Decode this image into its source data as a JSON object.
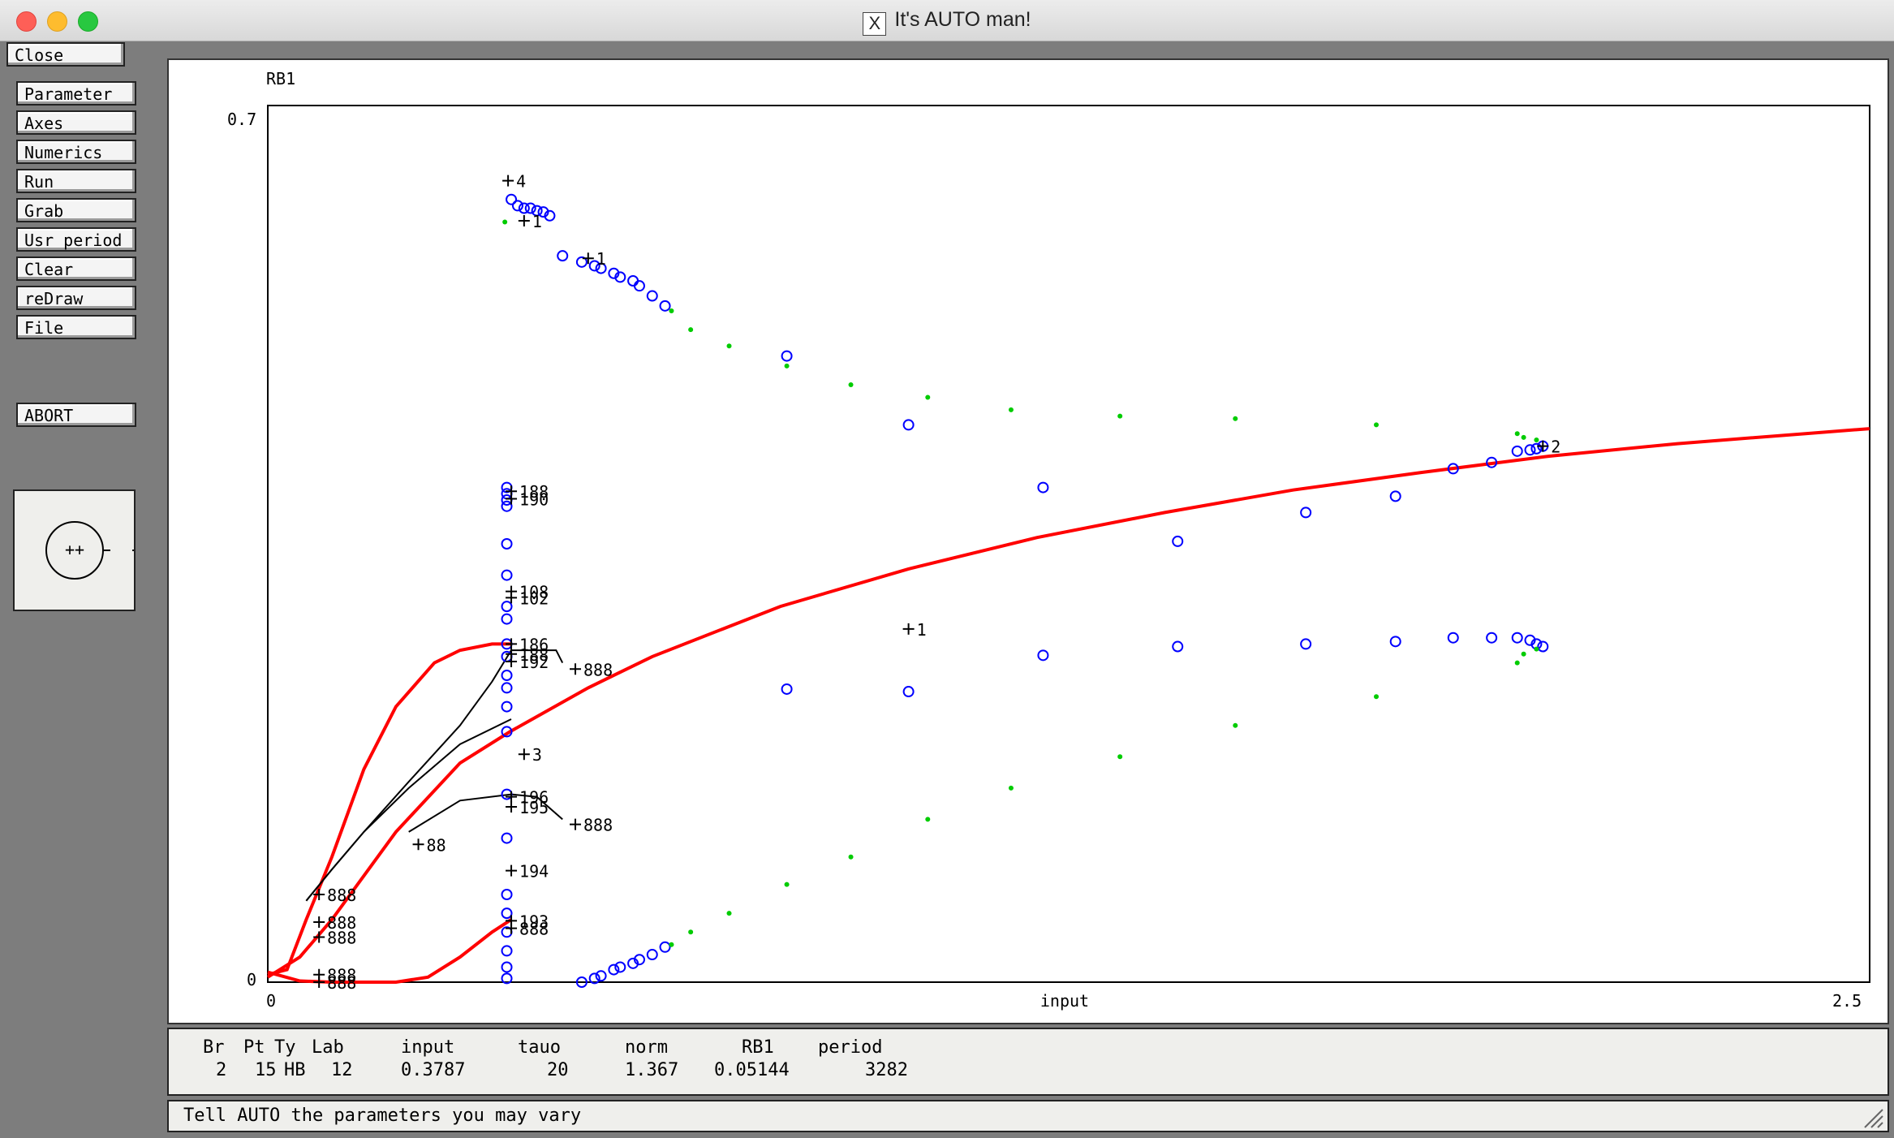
{
  "window": {
    "title": "It's AUTO man!",
    "x_glyph": "X"
  },
  "buttons": {
    "close": "Close",
    "menu": [
      "Parameter",
      "Axes",
      "Numerics",
      "Run",
      "Grab",
      "Usr period",
      "Clear",
      "reDraw",
      "File"
    ],
    "abort": "ABORT"
  },
  "plot": {
    "ylabel": "RB1",
    "xlabel": "input",
    "ymax_label": "0.7",
    "ymin_label": "0",
    "xmin_label": "0",
    "xmax_label": "2.5"
  },
  "chart_data": {
    "type": "scatter",
    "xlabel": "input",
    "ylabel": "RB1",
    "xlim": [
      0,
      2.5
    ],
    "ylim": [
      0,
      0.7
    ],
    "grid": false,
    "colors": {
      "stable_branch": "#ff0000",
      "unstable_branch": "#000000",
      "unstable_periodic": "#0000ff",
      "stable_periodic": "#00cc00"
    },
    "series": [
      {
        "style": "line-red",
        "x": [
          0.0,
          0.05,
          0.1,
          0.2,
          0.3,
          0.378,
          0.5,
          0.6,
          0.8,
          1.0,
          1.2,
          1.4,
          1.6,
          1.8,
          2.0,
          2.2,
          2.4,
          2.5
        ],
        "y": [
          0.004,
          0.02,
          0.05,
          0.12,
          0.175,
          0.2,
          0.235,
          0.26,
          0.3,
          0.33,
          0.355,
          0.375,
          0.393,
          0.407,
          0.42,
          0.43,
          0.438,
          0.442
        ]
      },
      {
        "style": "line-red",
        "x": [
          0.0,
          0.03,
          0.06,
          0.1,
          0.15,
          0.2,
          0.26,
          0.3,
          0.35,
          0.38
        ],
        "y": [
          0.006,
          0.01,
          0.05,
          0.1,
          0.17,
          0.22,
          0.255,
          0.265,
          0.27,
          0.27
        ]
      },
      {
        "style": "line-red",
        "x": [
          0.0,
          0.05,
          0.1,
          0.15,
          0.2,
          0.25,
          0.3,
          0.35,
          0.38
        ],
        "y": [
          0.008,
          0.001,
          0.0,
          0.0,
          0.0,
          0.004,
          0.02,
          0.04,
          0.05
        ]
      },
      {
        "style": "line-black",
        "x": [
          0.06,
          0.1,
          0.15,
          0.22,
          0.3,
          0.38
        ],
        "y": [
          0.065,
          0.09,
          0.12,
          0.155,
          0.19,
          0.21
        ]
      },
      {
        "style": "line-black",
        "x": [
          0.06,
          0.1,
          0.15,
          0.22,
          0.3,
          0.35,
          0.38,
          0.45,
          0.46
        ],
        "y": [
          0.065,
          0.09,
          0.12,
          0.16,
          0.205,
          0.24,
          0.265,
          0.265,
          0.255
        ]
      },
      {
        "style": "line-black",
        "x": [
          0.22,
          0.3,
          0.38,
          0.42,
          0.46
        ],
        "y": [
          0.12,
          0.145,
          0.15,
          0.148,
          0.13
        ]
      },
      {
        "style": "circles-blue",
        "x": [
          0.38,
          0.39,
          0.4,
          0.41,
          0.42,
          0.43,
          0.44,
          0.46,
          0.49,
          0.51,
          0.52,
          0.54,
          0.55,
          0.57,
          0.58,
          0.6,
          0.62,
          0.81,
          1.0,
          1.21,
          1.42,
          1.62,
          1.76,
          1.85,
          1.91,
          1.95,
          1.97,
          1.98,
          1.99
        ],
        "y": [
          0.625,
          0.62,
          0.618,
          0.618,
          0.616,
          0.615,
          0.612,
          0.58,
          0.575,
          0.572,
          0.57,
          0.566,
          0.563,
          0.56,
          0.556,
          0.548,
          0.54,
          0.5,
          0.445,
          0.395,
          0.352,
          0.375,
          0.388,
          0.41,
          0.415,
          0.424,
          0.425,
          0.426,
          0.428
        ]
      },
      {
        "style": "circles-blue",
        "x": [
          0.49,
          0.51,
          0.52,
          0.54,
          0.55,
          0.57,
          0.58,
          0.6,
          0.62,
          0.81,
          1.0,
          1.21,
          1.42,
          1.62,
          1.76,
          1.85,
          1.91,
          1.95,
          1.97,
          1.98,
          1.99
        ],
        "y": [
          0.0,
          0.003,
          0.005,
          0.01,
          0.012,
          0.015,
          0.018,
          0.022,
          0.028,
          0.234,
          0.232,
          0.261,
          0.268,
          0.27,
          0.272,
          0.275,
          0.275,
          0.275,
          0.273,
          0.27,
          0.268
        ]
      },
      {
        "style": "circles-blue",
        "x": [
          0.373,
          0.373,
          0.373,
          0.373,
          0.373,
          0.373,
          0.373,
          0.373,
          0.373,
          0.373,
          0.373,
          0.373,
          0.373,
          0.373,
          0.373,
          0.373,
          0.373,
          0.373,
          0.373,
          0.373,
          0.373,
          0.373
        ],
        "y": [
          0.395,
          0.39,
          0.385,
          0.38,
          0.35,
          0.325,
          0.3,
          0.29,
          0.27,
          0.26,
          0.245,
          0.235,
          0.22,
          0.2,
          0.15,
          0.115,
          0.07,
          0.055,
          0.04,
          0.025,
          0.012,
          0.003
        ]
      },
      {
        "style": "dots-green",
        "x": [
          0.37,
          0.63,
          0.66,
          0.72,
          0.81,
          0.91,
          1.03,
          1.16,
          1.33,
          1.51,
          1.73,
          1.95,
          1.96,
          1.98
        ],
        "y": [
          0.607,
          0.536,
          0.521,
          0.508,
          0.492,
          0.477,
          0.467,
          0.457,
          0.452,
          0.45,
          0.445,
          0.438,
          0.435,
          0.433
        ]
      },
      {
        "style": "dots-green",
        "x": [
          0.63,
          0.66,
          0.72,
          0.81,
          0.91,
          1.03,
          1.16,
          1.33,
          1.51,
          1.73,
          1.95,
          1.96,
          1.98
        ],
        "y": [
          0.03,
          0.04,
          0.055,
          0.078,
          0.1,
          0.13,
          0.155,
          0.18,
          0.205,
          0.228,
          0.255,
          0.262,
          0.266
        ]
      }
    ],
    "annotations": [
      {
        "x": 0.375,
        "y": 0.64,
        "text": "4"
      },
      {
        "x": 0.4,
        "y": 0.608,
        "text": "1"
      },
      {
        "x": 0.5,
        "y": 0.578,
        "text": "1"
      },
      {
        "x": 1.99,
        "y": 0.428,
        "text": "2"
      },
      {
        "x": 1.0,
        "y": 0.282,
        "text": "1"
      },
      {
        "x": 0.4,
        "y": 0.182,
        "text": "3"
      },
      {
        "x": 0.38,
        "y": 0.392,
        "text": "188"
      },
      {
        "x": 0.38,
        "y": 0.386,
        "text": "190"
      },
      {
        "x": 0.38,
        "y": 0.312,
        "text": "108"
      },
      {
        "x": 0.38,
        "y": 0.307,
        "text": "102"
      },
      {
        "x": 0.38,
        "y": 0.27,
        "text": "186"
      },
      {
        "x": 0.38,
        "y": 0.262,
        "text": "188"
      },
      {
        "x": 0.38,
        "y": 0.256,
        "text": "192"
      },
      {
        "x": 0.48,
        "y": 0.25,
        "text": "888"
      },
      {
        "x": 0.38,
        "y": 0.148,
        "text": "196"
      },
      {
        "x": 0.38,
        "y": 0.14,
        "text": "195"
      },
      {
        "x": 0.48,
        "y": 0.126,
        "text": "888"
      },
      {
        "x": 0.235,
        "y": 0.11,
        "text": "88"
      },
      {
        "x": 0.38,
        "y": 0.089,
        "text": "194"
      },
      {
        "x": 0.38,
        "y": 0.049,
        "text": "193"
      },
      {
        "x": 0.38,
        "y": 0.043,
        "text": "888"
      },
      {
        "x": 0.08,
        "y": 0.07,
        "text": "888"
      },
      {
        "x": 0.08,
        "y": 0.048,
        "text": "888"
      },
      {
        "x": 0.08,
        "y": 0.036,
        "text": "888"
      },
      {
        "x": 0.08,
        "y": 0.006,
        "text": "888"
      },
      {
        "x": 0.08,
        "y": 0.0,
        "text": "888"
      }
    ]
  },
  "info": {
    "headers": [
      "Br",
      "Pt",
      "Ty",
      "Lab",
      "input",
      "tauo",
      "norm",
      "RB1",
      "period"
    ],
    "values": [
      "2",
      "15",
      "HB",
      "12",
      "0.3787",
      "20",
      "1.367",
      "0.05144",
      "3282"
    ]
  },
  "message": "Tell AUTO the parameters you may vary"
}
